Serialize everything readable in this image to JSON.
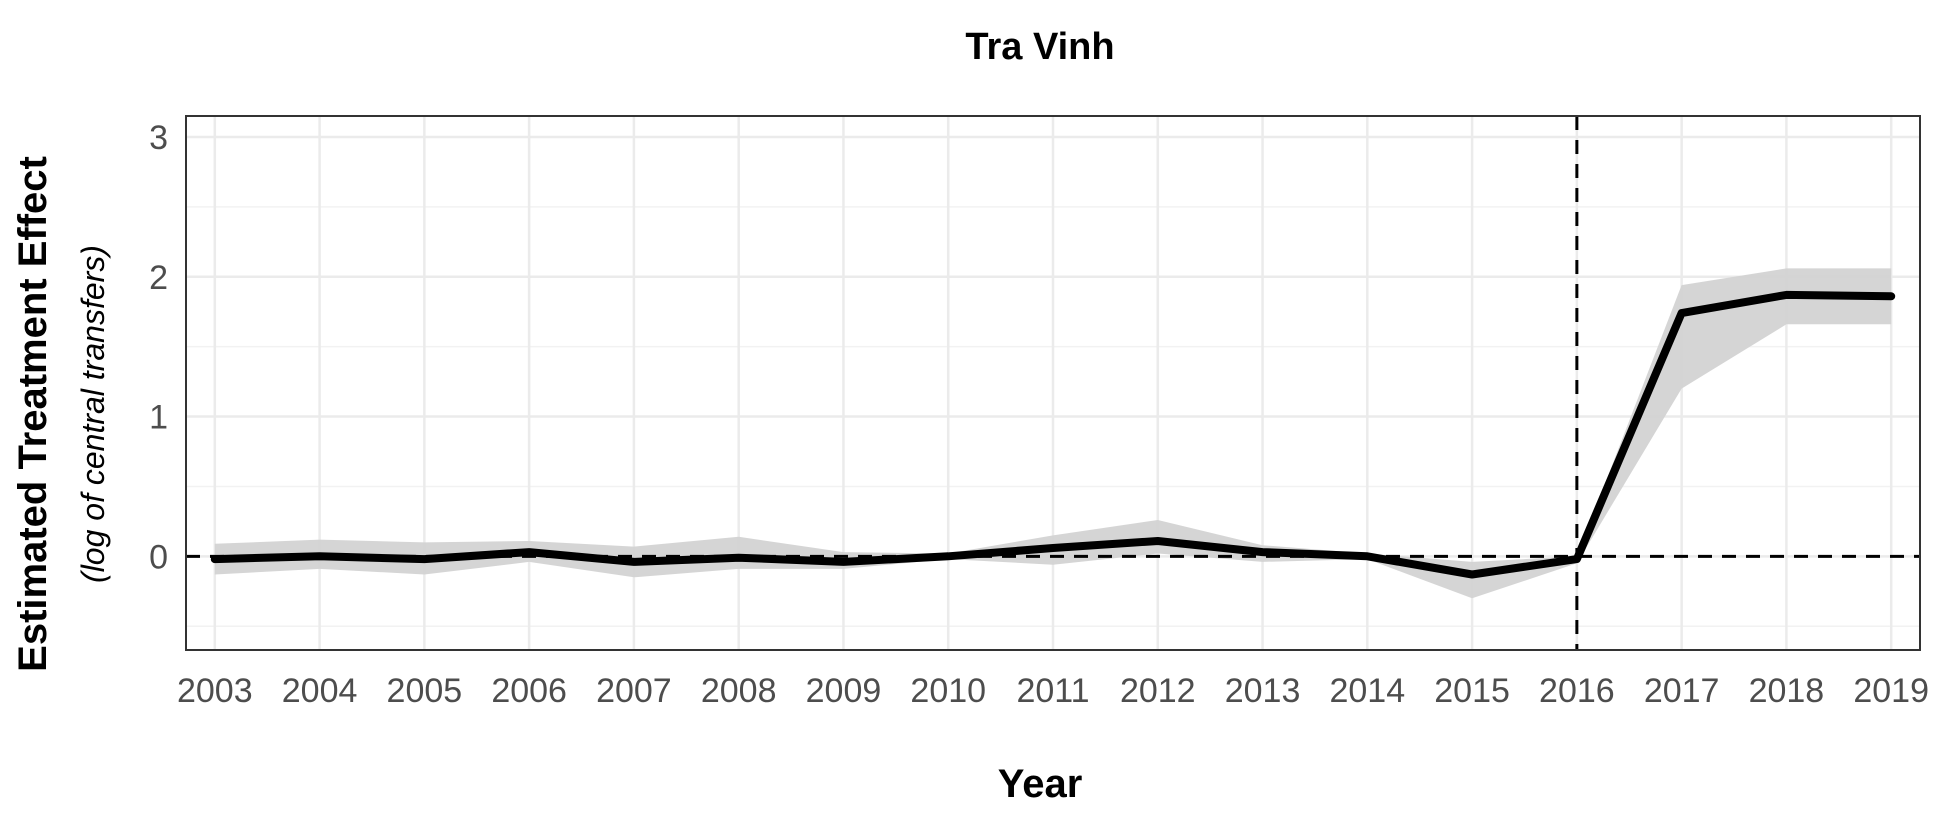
{
  "chart_data": {
    "type": "line",
    "title": "Tra Vinh",
    "xlabel": "Year",
    "ylabel": "Estimated Treatment Effect",
    "ylabel_sub": "(log of central transfers)",
    "x": [
      "2003",
      "2004",
      "2005",
      "2006",
      "2007",
      "2008",
      "2009",
      "2010",
      "2011",
      "2012",
      "2013",
      "2014",
      "2015",
      "2016",
      "2017",
      "2018",
      "2019"
    ],
    "series": [
      {
        "values": [
          -0.02,
          0.0,
          -0.02,
          0.03,
          -0.04,
          -0.01,
          -0.04,
          0.0,
          0.06,
          0.11,
          0.03,
          0.0,
          -0.13,
          -0.02,
          1.74,
          1.87,
          1.86
        ],
        "lower": [
          -0.13,
          -0.09,
          -0.13,
          -0.04,
          -0.15,
          -0.09,
          -0.09,
          -0.02,
          -0.06,
          0.02,
          -0.04,
          -0.02,
          -0.3,
          -0.05,
          1.2,
          1.66,
          1.66
        ],
        "upper": [
          0.09,
          0.12,
          0.1,
          0.11,
          0.07,
          0.14,
          0.03,
          0.02,
          0.15,
          0.26,
          0.08,
          0.02,
          -0.04,
          0.0,
          1.94,
          2.06,
          2.06
        ]
      }
    ],
    "ylim": [
      -0.67,
      3.15
    ],
    "yticks": [
      "0",
      "1",
      "2",
      "3"
    ],
    "reference_hline": 0,
    "reference_vline": "2016",
    "grid": true,
    "legend": "none",
    "colors": {
      "line": "#000000",
      "band": "#d3d3d3",
      "grid": "#ebebeb",
      "grid_minor": "#f2f2f2"
    }
  }
}
